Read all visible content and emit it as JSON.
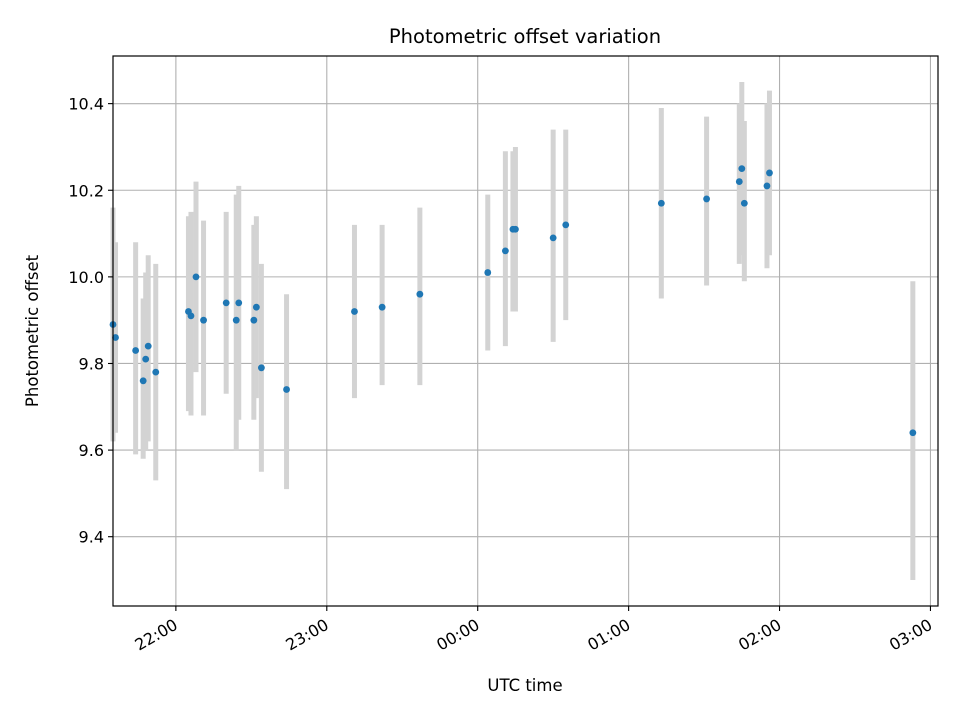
{
  "chart_data": {
    "type": "scatter",
    "title": "Photometric offset variation",
    "xlabel": "UTC time",
    "ylabel": "Photometric offset",
    "x_ticks": [
      {
        "value": "22:00",
        "label": "22:00"
      },
      {
        "value": "23:00",
        "label": "23:00"
      },
      {
        "value": "00:00",
        "label": "00:00"
      },
      {
        "value": "01:00",
        "label": "01:00"
      },
      {
        "value": "02:00",
        "label": "02:00"
      },
      {
        "value": "03:00",
        "label": "03:00"
      }
    ],
    "y_ticks": [
      9.4,
      9.6,
      9.8,
      10.0,
      10.2,
      10.4
    ],
    "xlim": [
      "21:35",
      "03:03"
    ],
    "ylim": [
      9.24,
      10.51
    ],
    "grid": true,
    "colors": {
      "points": "#1f77b4",
      "error_bars": "#d3d3d3",
      "grid": "#b0b0b0"
    },
    "series": [
      {
        "points": [
          {
            "x": "21:35",
            "y": 9.89,
            "ylo": 9.62,
            "yhi": 10.16
          },
          {
            "x": "21:36",
            "y": 9.86,
            "ylo": 9.64,
            "yhi": 10.08
          },
          {
            "x": "21:44",
            "y": 9.83,
            "ylo": 9.59,
            "yhi": 10.08
          },
          {
            "x": "21:47",
            "y": 9.76,
            "ylo": 9.58,
            "yhi": 9.95
          },
          {
            "x": "21:48",
            "y": 9.81,
            "ylo": 9.6,
            "yhi": 10.01
          },
          {
            "x": "21:49",
            "y": 9.84,
            "ylo": 9.62,
            "yhi": 10.05
          },
          {
            "x": "21:52",
            "y": 9.78,
            "ylo": 9.53,
            "yhi": 10.03
          },
          {
            "x": "22:05",
            "y": 9.92,
            "ylo": 9.69,
            "yhi": 10.14
          },
          {
            "x": "22:06",
            "y": 9.91,
            "ylo": 9.68,
            "yhi": 10.15
          },
          {
            "x": "22:08",
            "y": 10.0,
            "ylo": 9.78,
            "yhi": 10.22
          },
          {
            "x": "22:11",
            "y": 9.9,
            "ylo": 9.68,
            "yhi": 10.13
          },
          {
            "x": "22:20",
            "y": 9.94,
            "ylo": 9.73,
            "yhi": 10.15
          },
          {
            "x": "22:24",
            "y": 9.9,
            "ylo": 9.6,
            "yhi": 10.19
          },
          {
            "x": "22:25",
            "y": 9.94,
            "ylo": 9.67,
            "yhi": 10.21
          },
          {
            "x": "22:31",
            "y": 9.9,
            "ylo": 9.67,
            "yhi": 10.12
          },
          {
            "x": "22:32",
            "y": 9.93,
            "ylo": 9.72,
            "yhi": 10.14
          },
          {
            "x": "22:34",
            "y": 9.79,
            "ylo": 9.55,
            "yhi": 10.03
          },
          {
            "x": "22:44",
            "y": 9.74,
            "ylo": 9.51,
            "yhi": 9.96
          },
          {
            "x": "23:11",
            "y": 9.92,
            "ylo": 9.72,
            "yhi": 10.12
          },
          {
            "x": "23:22",
            "y": 9.93,
            "ylo": 9.75,
            "yhi": 10.12
          },
          {
            "x": "23:37",
            "y": 9.96,
            "ylo": 9.75,
            "yhi": 10.16
          },
          {
            "x": "00:04",
            "y": 10.01,
            "ylo": 9.83,
            "yhi": 10.19
          },
          {
            "x": "00:11",
            "y": 10.06,
            "ylo": 9.84,
            "yhi": 10.29
          },
          {
            "x": "00:14",
            "y": 10.11,
            "ylo": 9.92,
            "yhi": 10.29
          },
          {
            "x": "00:15",
            "y": 10.11,
            "ylo": 9.92,
            "yhi": 10.3
          },
          {
            "x": "00:30",
            "y": 10.09,
            "ylo": 9.85,
            "yhi": 10.34
          },
          {
            "x": "00:35",
            "y": 10.12,
            "ylo": 9.9,
            "yhi": 10.34
          },
          {
            "x": "01:13",
            "y": 10.17,
            "ylo": 9.95,
            "yhi": 10.39
          },
          {
            "x": "01:31",
            "y": 10.18,
            "ylo": 9.98,
            "yhi": 10.37
          },
          {
            "x": "01:44",
            "y": 10.22,
            "ylo": 10.03,
            "yhi": 10.4
          },
          {
            "x": "01:45",
            "y": 10.25,
            "ylo": 10.05,
            "yhi": 10.45
          },
          {
            "x": "01:46",
            "y": 10.17,
            "ylo": 9.99,
            "yhi": 10.36
          },
          {
            "x": "01:55",
            "y": 10.21,
            "ylo": 10.02,
            "yhi": 10.4
          },
          {
            "x": "01:56",
            "y": 10.24,
            "ylo": 10.05,
            "yhi": 10.43
          },
          {
            "x": "02:53",
            "y": 9.64,
            "ylo": 9.3,
            "yhi": 9.99
          }
        ]
      }
    ]
  }
}
